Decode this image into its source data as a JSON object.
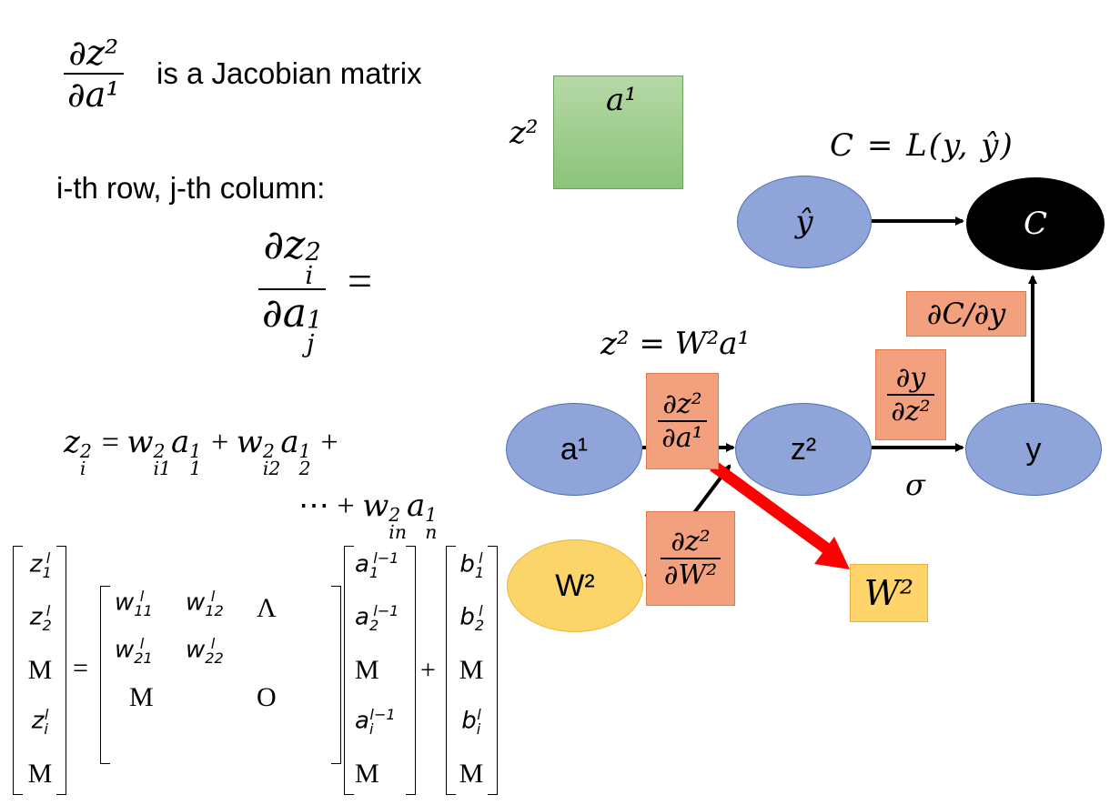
{
  "top_left": {
    "fraction_num": "∂z²",
    "fraction_den": "∂a¹",
    "jacobian_text": "is a Jacobian matrix",
    "row_col_text": "i-th row, j-th column:",
    "elem_num_base": "∂z",
    "elem_num_sub": "i",
    "elem_num_sup": "2",
    "elem_den_base": "∂a",
    "elem_den_sub": "j",
    "elem_den_sup": "1",
    "equals": "="
  },
  "equation": {
    "line1": "z_i^2 = w_i1^2 a_1^1 + w_i2^2 a_2^1 +",
    "line2": "⋯ + w_in^2 a_n^1"
  },
  "green_matrix": {
    "row_label": "z²",
    "col_label": "a¹"
  },
  "graph": {
    "cost_formula": "C = L(y, ŷ)",
    "z2_formula": "z² = W²a¹",
    "nodes": {
      "y_hat": "ŷ",
      "C": "C",
      "a1": "a¹",
      "z2": "z²",
      "y": "y",
      "W2": "W²"
    },
    "sigma": "σ",
    "edges": {
      "dC_dy": "∂C/∂y",
      "dy_dz_num": "∂y",
      "dy_dz_den": "∂z²",
      "dz_da_num": "∂z²",
      "dz_da_den": "∂a¹",
      "dz_dW_num": "∂z²",
      "dz_dW_den": "∂W²"
    },
    "target_box": "W²",
    "colors": {
      "node_blue": "#8fa5da",
      "node_yellow": "#fbd46a",
      "salmon": "#f3a07f",
      "red_arrow": "#ff0000"
    }
  },
  "matrix_eq": {
    "z_col": [
      "z1l",
      "z2l",
      "M",
      "zil",
      "M"
    ],
    "w_rows": [
      [
        "w11l",
        "w12l",
        "Λ"
      ],
      [
        "w21l",
        "w22l",
        ""
      ],
      [
        "M",
        "",
        "O"
      ]
    ],
    "a_col": [
      "a1l-1",
      "a2l-1",
      "M",
      "ail-1",
      "M"
    ],
    "b_col": [
      "b1l",
      "b2l",
      "M",
      "bil",
      "M"
    ],
    "equals": "=",
    "plus": "+"
  }
}
